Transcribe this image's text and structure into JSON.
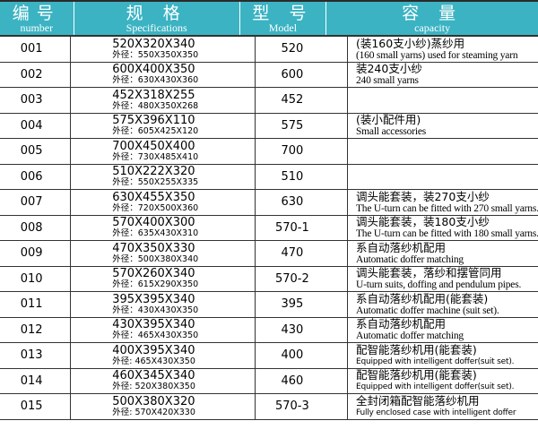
{
  "header": {
    "number": {
      "zh": "编号",
      "en": "number"
    },
    "specifications": {
      "zh": "规 格",
      "en": "Specifications"
    },
    "model": {
      "zh": "型 号",
      "en": "Model"
    },
    "capacity": {
      "zh": "容 量",
      "en": "capacity"
    },
    "color": "#3bb3c3"
  },
  "rows": [
    {
      "number": "001",
      "spec": "520X320X340",
      "outer": "外径：550X350X350",
      "model": "520",
      "cap_zh": "(装160支小纱)蒸纱用",
      "cap_en": "(160 small yarns) used for steaming yarn"
    },
    {
      "number": "002",
      "spec": "600X400X350",
      "outer": "外径：630X430X360",
      "model": "600",
      "cap_zh": "装240支小纱",
      "cap_en": "240 small yarns"
    },
    {
      "number": "003",
      "spec": "452X318X255",
      "outer": "外径：480X350X268",
      "model": "452",
      "cap_zh": "",
      "cap_en": ""
    },
    {
      "number": "004",
      "spec": "575X396X110",
      "outer": "外径：605X425X120",
      "model": "575",
      "cap_zh": "(装小配件用)",
      "cap_en": "Small accessories"
    },
    {
      "number": "005",
      "spec": "700X450X400",
      "outer": "外径：730X485X410",
      "model": "700",
      "cap_zh": "",
      "cap_en": ""
    },
    {
      "number": "006",
      "spec": "510X222X320",
      "outer": "外径：550X255X335",
      "model": "510",
      "cap_zh": "",
      "cap_en": ""
    },
    {
      "number": "007",
      "spec": "630X455X350",
      "outer": "外径：720X500X360",
      "model": "630",
      "cap_zh": "调头能套装，装270支小纱",
      "cap_en": "The U-turn can be fitted with 270 small yarns."
    },
    {
      "number": "008",
      "spec": "570X400X300",
      "outer": "外径：635X430X310",
      "model": "570-1",
      "cap_zh": "调头能套装，装180支小纱",
      "cap_en": "The U-turn can be fitted with 180 small yarns."
    },
    {
      "number": "009",
      "spec": "470X350X330",
      "outer": "外径：500X380X340",
      "model": "470",
      "cap_zh": "系自动落纱机配用",
      "cap_en": "Automatic doffer matching"
    },
    {
      "number": "010",
      "spec": "570X260X340",
      "outer": "外径：615X290X350",
      "model": "570-2",
      "cap_zh": "调头能套装，落纱和摆管同用",
      "cap_en": "U-turn suits, doffing and pendulum pipes."
    },
    {
      "number": "011",
      "spec": "395X395X340",
      "outer": "外径：430X430X350",
      "model": "395",
      "cap_zh": "系自动落纱机配用(能套装)",
      "cap_en": "Automatic doffer machine (suit set)."
    },
    {
      "number": "012",
      "spec": "430X395X340",
      "outer": "外径：465X430X350",
      "model": "430",
      "cap_zh": "系自动落纱机配用",
      "cap_en": "Automatic doffer matching"
    },
    {
      "number": "013",
      "spec": "400X395X340",
      "outer": "外径: 465X430X350",
      "model": "400",
      "cap_zh": "配智能落纱机用(能套装)",
      "cap_en": "Equipped with intelligent doffer(suit set)."
    },
    {
      "number": "014",
      "spec": "460X345X340",
      "outer": "外径: 520X380X350",
      "model": "460",
      "cap_zh": "配智能落纱机用(能套装)",
      "cap_en": "Equipped with intelligent doffer(suit set)."
    },
    {
      "number": "015",
      "spec": "500X380X320",
      "outer": "外径: 570X420X330",
      "model": "570-3",
      "cap_zh": "全封闭箱配智能落纱机用",
      "cap_en": "Fully enclosed case with intelligent doffer"
    }
  ]
}
